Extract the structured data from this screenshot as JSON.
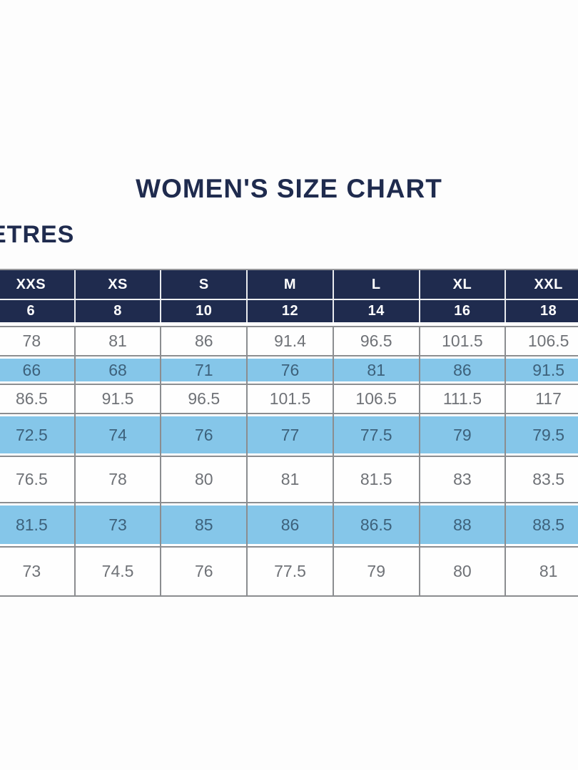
{
  "page": {
    "title": "WOMEN'S SIZE CHART",
    "unit_label": "ETRES"
  },
  "colors": {
    "navy": "#1f2b4e",
    "light_blue": "#85c6e9",
    "white_row_text": "#6f7277",
    "blue_row_text": "#3d617b",
    "header_text": "#ffffff",
    "grid_line": "#8b8d90"
  },
  "chart_data": {
    "type": "table",
    "title": "WOMEN'S SIZE CHART",
    "header_rows": [
      [
        "XXS",
        "XS",
        "S",
        "M",
        "L",
        "XL",
        "XXL"
      ],
      [
        "6",
        "8",
        "10",
        "12",
        "14",
        "16",
        "18"
      ]
    ],
    "rows": [
      [
        "78",
        "81",
        "86",
        "91.4",
        "96.5",
        "101.5",
        "106.5"
      ],
      [
        "66",
        "68",
        "71",
        "76",
        "81",
        "86",
        "91.5"
      ],
      [
        "86.5",
        "91.5",
        "96.5",
        "101.5",
        "106.5",
        "111.5",
        "117"
      ],
      [
        "72.5",
        "74",
        "76",
        "77",
        "77.5",
        "79",
        "79.5"
      ],
      [
        "76.5",
        "78",
        "80",
        "81",
        "81.5",
        "83",
        "83.5"
      ],
      [
        "81.5",
        "73",
        "85",
        "86",
        "86.5",
        "88",
        "88.5"
      ],
      [
        "73",
        "74.5",
        "76",
        "77.5",
        "79",
        "80",
        "81"
      ]
    ],
    "highlighted_row_indices": [
      1,
      3,
      5
    ],
    "layout": {
      "legend": "none",
      "grid": "on",
      "left_edge_cropped": true,
      "right_edge_cropped": true
    }
  }
}
